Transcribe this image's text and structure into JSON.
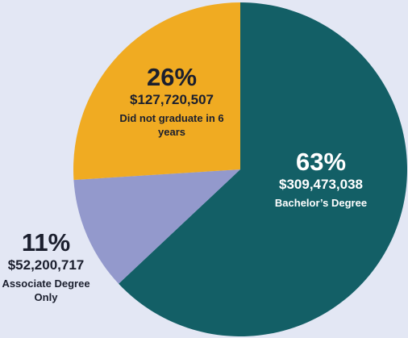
{
  "chart_data": {
    "type": "pie",
    "categories": [
      "Bachelor’s Degree",
      "Associate Degree Only",
      "Did not graduate in 6 years"
    ],
    "values": [
      63,
      11,
      26
    ],
    "value_labels": [
      "63%",
      "11%",
      "26%"
    ],
    "amount_labels": [
      "$309,473,038",
      "$52,200,717",
      "$127,720,507"
    ],
    "colors": [
      "#135f66",
      "#9399cc",
      "#f0ab22"
    ]
  }
}
